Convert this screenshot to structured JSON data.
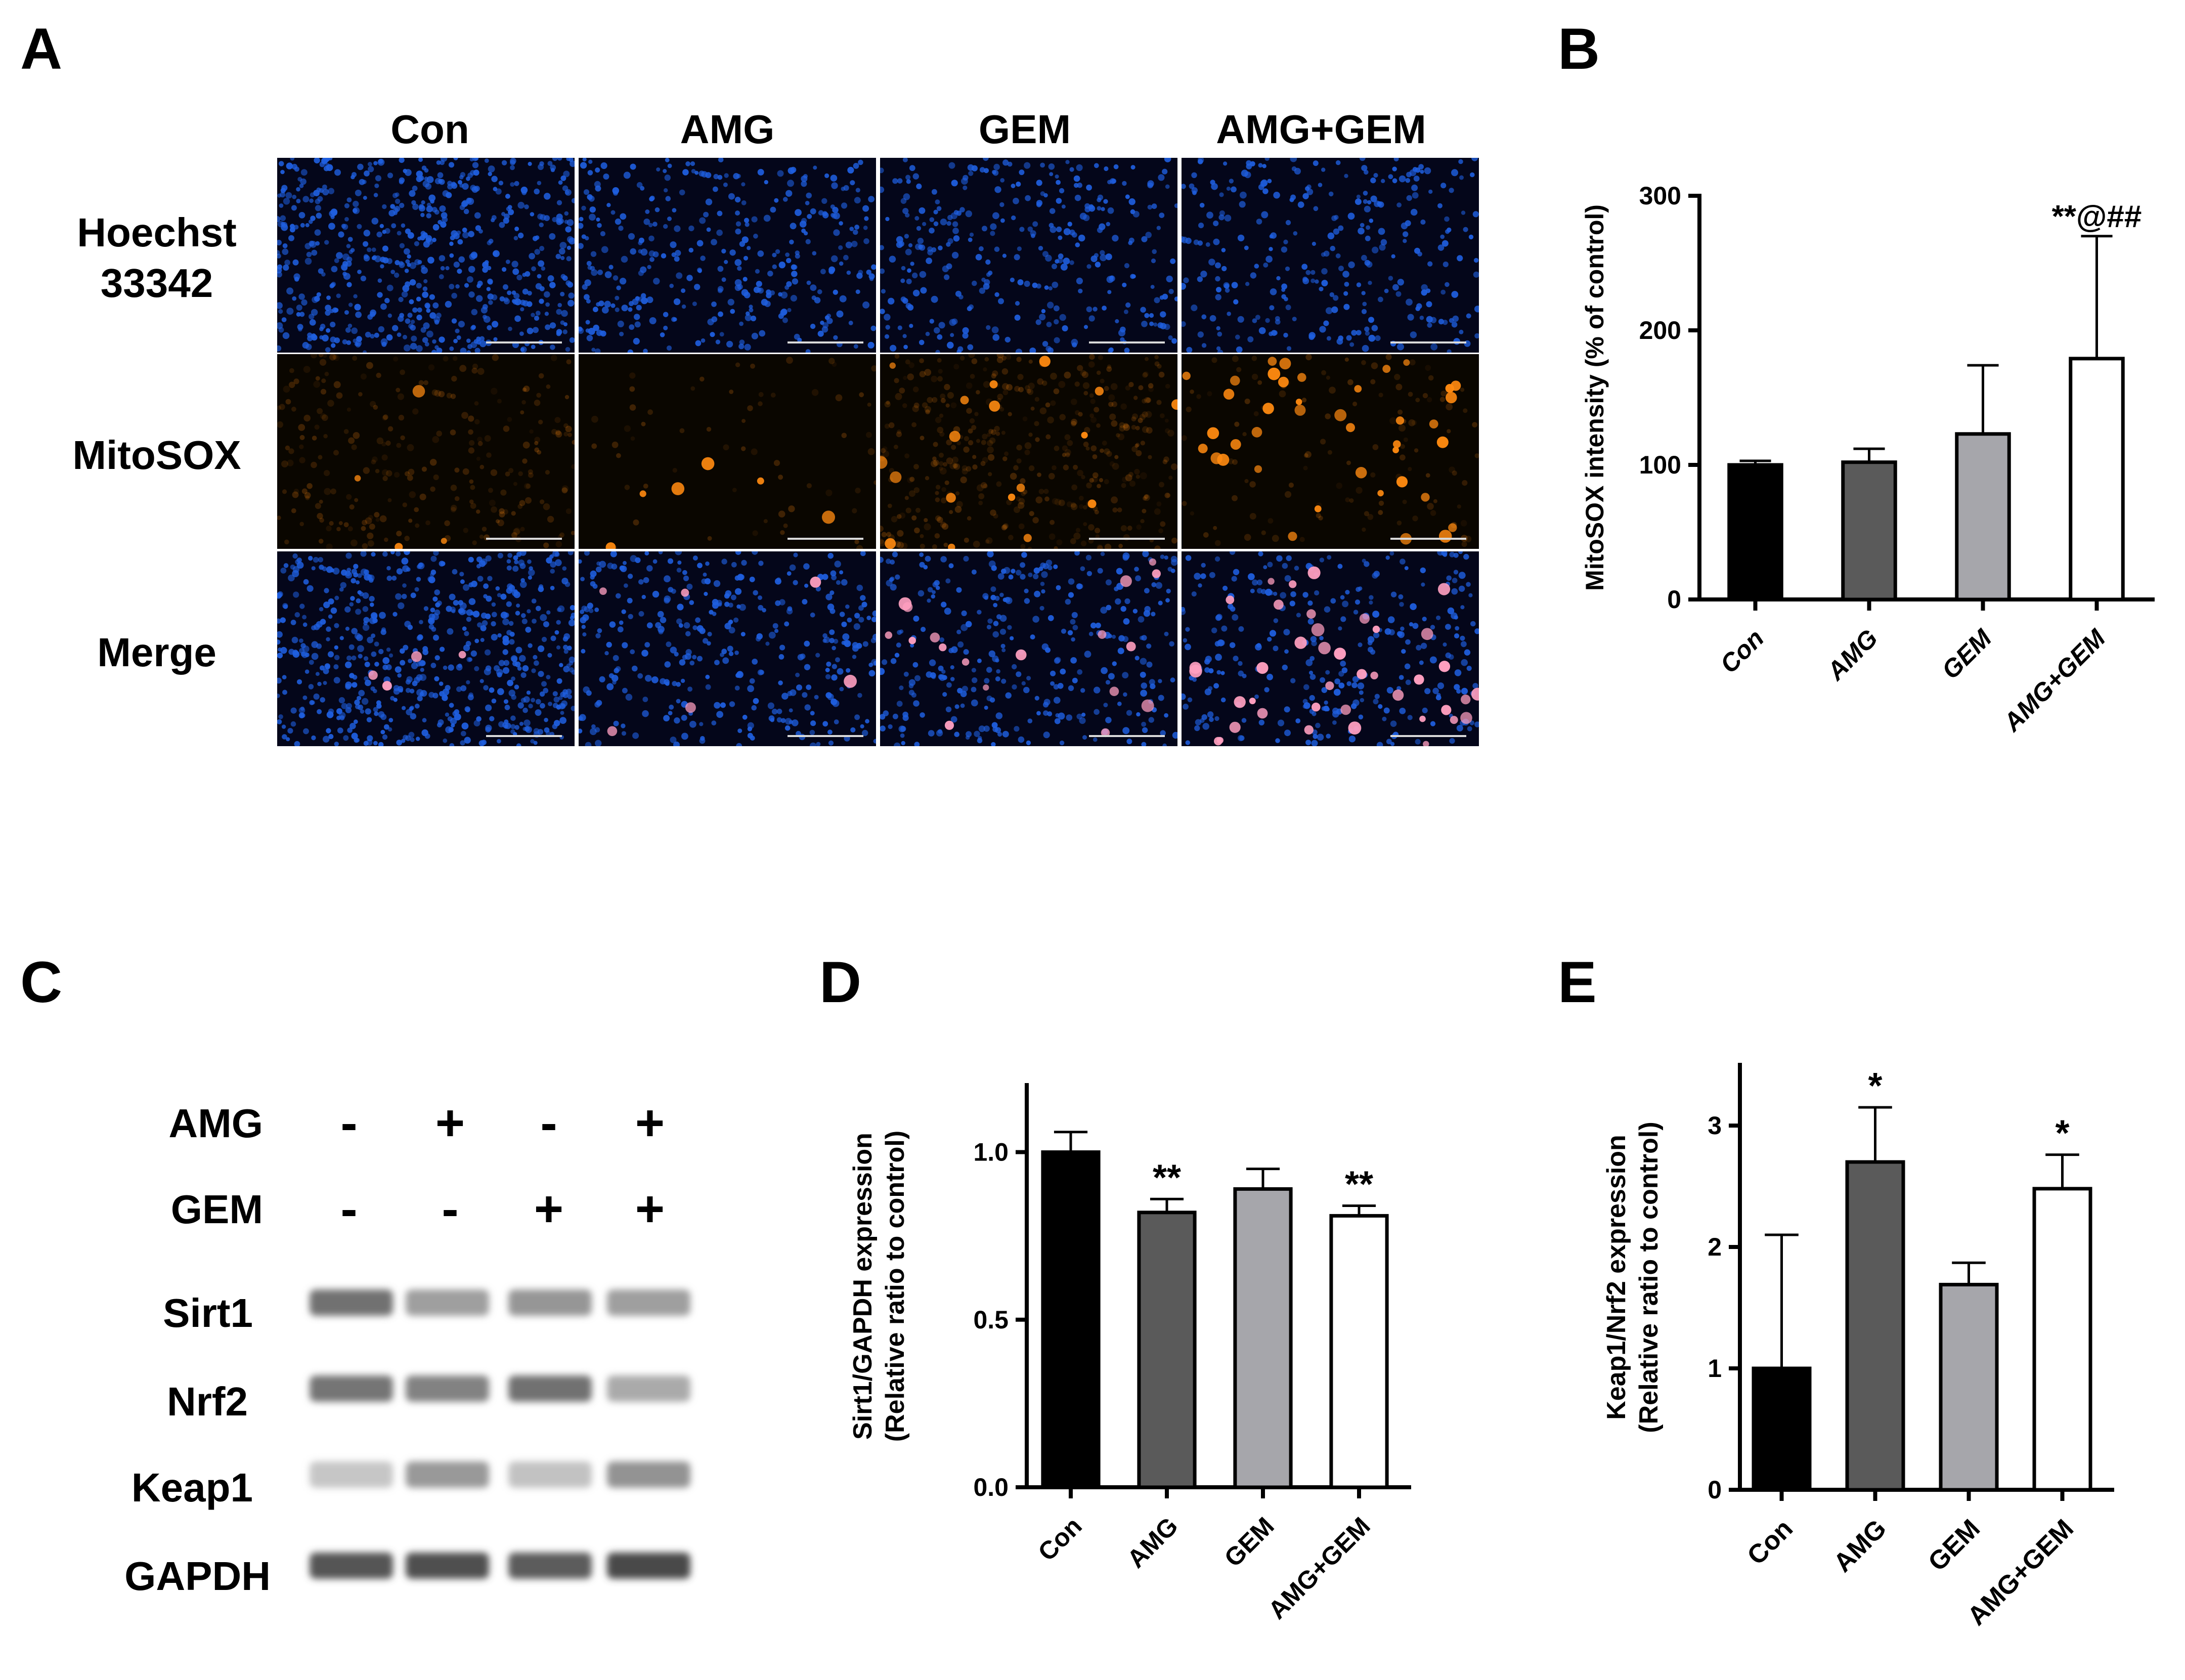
{
  "panels": {
    "A": "A",
    "B": "B",
    "C": "C",
    "D": "D",
    "E": "E"
  },
  "micrographs": {
    "columns": [
      "Con",
      "AMG",
      "GEM",
      "AMG+GEM"
    ],
    "rows": [
      {
        "label_line1": "Hoechst",
        "label_line2": "33342",
        "channel": "blue"
      },
      {
        "label_line1": "MitoSOX",
        "label_line2": "",
        "channel": "orange"
      },
      {
        "label_line1": "Merge",
        "label_line2": "",
        "channel": "merge"
      }
    ],
    "colors": {
      "nuclei": "#1f5fe0",
      "mitosox": "#ff8a10",
      "merge_spot": "#ff9fc0",
      "background": "#04061a"
    }
  },
  "western_blot": {
    "conditions": [
      {
        "label": "AMG",
        "signs": [
          "-",
          "+",
          "-",
          "+"
        ]
      },
      {
        "label": "GEM",
        "signs": [
          "-",
          "-",
          "+",
          "+"
        ]
      }
    ],
    "bands": [
      {
        "label": "Sirt1",
        "intensity": [
          0.72,
          0.45,
          0.5,
          0.45
        ]
      },
      {
        "label": "Nrf2",
        "intensity": [
          0.7,
          0.62,
          0.72,
          0.38
        ]
      },
      {
        "label": "Keap1",
        "intensity": [
          0.22,
          0.48,
          0.24,
          0.52
        ]
      },
      {
        "label": "GAPDH",
        "intensity": [
          0.88,
          0.92,
          0.85,
          0.95
        ]
      }
    ]
  },
  "chart_data": [
    {
      "panel": "B",
      "type": "bar",
      "categories": [
        "Con",
        "AMG",
        "GEM",
        "AMG+GEM"
      ],
      "values": [
        100,
        102,
        123,
        179
      ],
      "errors": [
        3,
        10,
        51,
        91
      ],
      "ylabel": "MitoSOX intensity (% of control)",
      "ylim": [
        0,
        300
      ],
      "yticks": [
        "0",
        "100",
        "200",
        "300"
      ],
      "annotations": [
        "",
        "",
        "",
        "**@##"
      ],
      "fills": [
        "#000000",
        "#5a5a5a",
        "#a6a6ab",
        "#ffffff"
      ],
      "grid": false
    },
    {
      "panel": "D",
      "type": "bar",
      "categories": [
        "Con",
        "AMG",
        "GEM",
        "AMG+GEM"
      ],
      "values": [
        1.0,
        0.82,
        0.89,
        0.81
      ],
      "errors": [
        0.06,
        0.04,
        0.06,
        0.03
      ],
      "ylabel_line1": "Sirt1/GAPDH expression",
      "ylabel_line2": "(Relative ratio to control)",
      "ylim": [
        0,
        1.2
      ],
      "yticks": [
        "0.0",
        "0.5",
        "1.0"
      ],
      "annotations": [
        "",
        "**",
        "",
        "**"
      ],
      "fills": [
        "#000000",
        "#5a5a5a",
        "#a6a6ab",
        "#ffffff"
      ],
      "grid": false
    },
    {
      "panel": "E",
      "type": "bar",
      "categories": [
        "Con",
        "AMG",
        "GEM",
        "AMG+GEM"
      ],
      "values": [
        1.0,
        2.7,
        1.69,
        2.48
      ],
      "errors": [
        1.1,
        0.45,
        0.18,
        0.28
      ],
      "ylabel_line1": "Keap1/Nrf2 expression",
      "ylabel_line2": "(Relative ratio to control)",
      "ylim": [
        0,
        3.5
      ],
      "yticks": [
        "0",
        "1",
        "2",
        "3"
      ],
      "annotations": [
        "",
        "*",
        "",
        "*"
      ],
      "fills": [
        "#000000",
        "#5a5a5a",
        "#a6a6ab",
        "#ffffff"
      ],
      "grid": false
    }
  ]
}
